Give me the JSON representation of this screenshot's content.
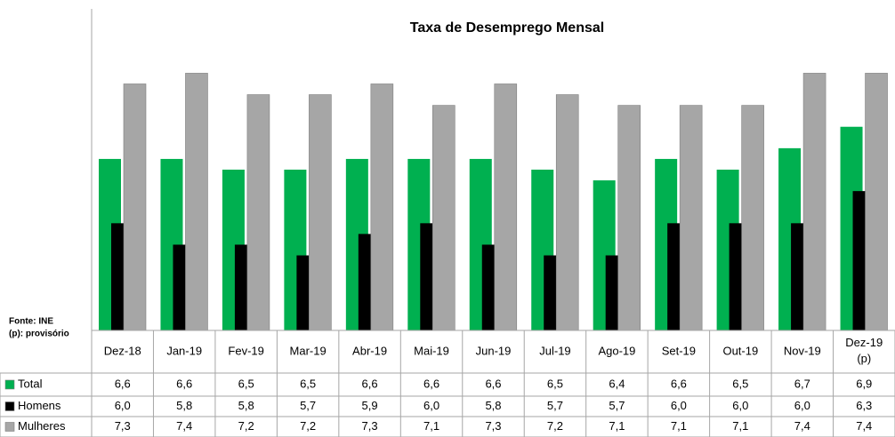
{
  "chart_data": {
    "type": "bar",
    "title": "Taxa de Desemprego Mensal",
    "notes": [
      "Fonte: INE",
      "(p): provisório"
    ],
    "categories": [
      "Dez-18",
      "Jan-19",
      "Fev-19",
      "Mar-19",
      "Abr-19",
      "Mai-19",
      "Jun-19",
      "Jul-19",
      "Ago-19",
      "Set-19",
      "Out-19",
      "Nov-19",
      "Dez-19 (p)"
    ],
    "series": [
      {
        "name": "Total",
        "color": "#00b050",
        "values": [
          6.6,
          6.6,
          6.5,
          6.5,
          6.6,
          6.6,
          6.6,
          6.5,
          6.4,
          6.6,
          6.5,
          6.7,
          6.9
        ],
        "value_labels": [
          "6,6",
          "6,6",
          "6,5",
          "6,5",
          "6,6",
          "6,6",
          "6,6",
          "6,5",
          "6,4",
          "6,6",
          "6,5",
          "6,7",
          "6,9"
        ]
      },
      {
        "name": "Homens",
        "color": "#000000",
        "values": [
          6.0,
          5.8,
          5.8,
          5.7,
          5.9,
          6.0,
          5.8,
          5.7,
          5.7,
          6.0,
          6.0,
          6.0,
          6.3
        ],
        "value_labels": [
          "6,0",
          "5,8",
          "5,8",
          "5,7",
          "5,9",
          "6,0",
          "5,8",
          "5,7",
          "5,7",
          "6,0",
          "6,0",
          "6,0",
          "6,3"
        ]
      },
      {
        "name": "Mulheres",
        "color": "#a6a6a6",
        "values": [
          7.3,
          7.4,
          7.2,
          7.2,
          7.3,
          7.1,
          7.3,
          7.2,
          7.1,
          7.1,
          7.1,
          7.4,
          7.4
        ],
        "value_labels": [
          "7,3",
          "7,4",
          "7,2",
          "7,2",
          "7,3",
          "7,1",
          "7,3",
          "7,2",
          "7,1",
          "7,1",
          "7,1",
          "7,4",
          "7,4"
        ]
      }
    ],
    "ylim": [
      5,
      8
    ]
  }
}
